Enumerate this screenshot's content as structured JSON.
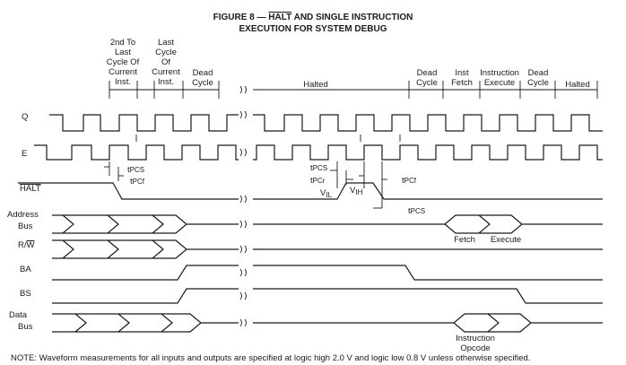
{
  "figure": {
    "title_prefix": "FIGURE 8 — ",
    "title_overline": "HALT",
    "title_suffix": " AND SINGLE INSTRUCTION",
    "title_line2": "EXECUTION FOR SYSTEM DEBUG",
    "note": "NOTE: Waveform measurements for all inputs and outputs are specified at logic high 2.0 V and logic low 0.8 V unless otherwise specified."
  },
  "phases": [
    {
      "lines": [
        "2nd To",
        "Last",
        "Cycle Of",
        "Current",
        "Inst."
      ]
    },
    {
      "lines": [
        "Last",
        "Cycle",
        "Of",
        "Current",
        "Inst."
      ]
    },
    {
      "lines": [
        "Dead",
        "Cycle"
      ]
    },
    {
      "lines": [
        "Halted"
      ]
    },
    {
      "lines": [
        "Dead",
        "Cycle"
      ]
    },
    {
      "lines": [
        "Inst",
        "Fetch"
      ]
    },
    {
      "lines": [
        "Instruction",
        "Execute"
      ]
    },
    {
      "lines": [
        "Dead",
        "Cycle"
      ]
    },
    {
      "lines": [
        "Halted"
      ]
    }
  ],
  "signals": {
    "q": "Q",
    "e": "E",
    "halt": "HALT",
    "address_1": "Address",
    "address_2": "Bus",
    "rw_r": "R/",
    "rw_w": "W",
    "ba": "BA",
    "bs": "BS",
    "data_1": "Data",
    "data_2": "Bus"
  },
  "timing_labels": [
    {
      "text": "tPCS"
    },
    {
      "text": "tPCf"
    },
    {
      "text": "tPCS"
    },
    {
      "text": "tPCr"
    },
    {
      "text": "VIL"
    },
    {
      "text": "VIH"
    },
    {
      "text": "tPCf"
    },
    {
      "text": "tPCS"
    }
  ],
  "bus_labels": {
    "fetch": "Fetch",
    "execute": "Execute",
    "instruction": "Instruction",
    "opcode": "Opcode"
  }
}
